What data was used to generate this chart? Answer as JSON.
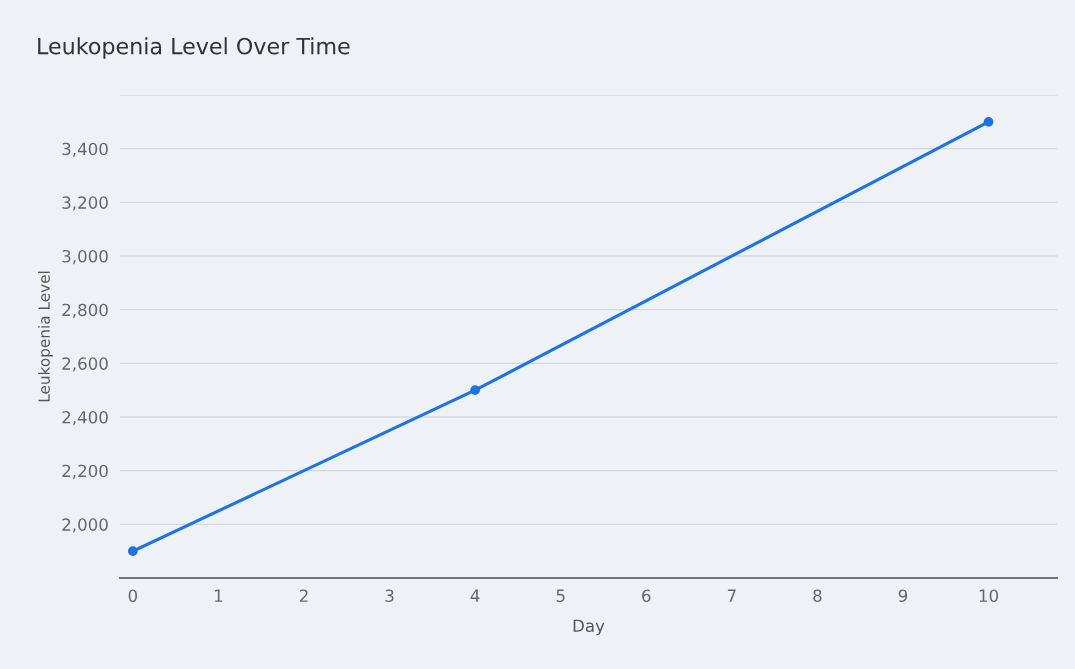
{
  "chart_data": {
    "type": "line",
    "title": "Leukopenia Level Over Time",
    "xlabel": "Day",
    "ylabel": "Leukopenia Level",
    "x": [
      0,
      4,
      10
    ],
    "series": [
      {
        "color": "#1a73e8",
        "values": [
          1900,
          2500,
          3500
        ]
      }
    ],
    "xlim": [
      -0.15,
      10.8
    ],
    "xticks": [
      0,
      1,
      2,
      3,
      4,
      5,
      6,
      7,
      8,
      9,
      10
    ],
    "ylim": [
      1800,
      3600
    ],
    "yticks": [
      {
        "value": 1800,
        "label": null
      },
      {
        "value": 2000,
        "label": "2,000"
      },
      {
        "value": 2200,
        "label": "2,200"
      },
      {
        "value": 2400,
        "label": "2,400"
      },
      {
        "value": 2600,
        "label": "2,600"
      },
      {
        "value": 2800,
        "label": "2,800"
      },
      {
        "value": 3000,
        "label": "3,000"
      },
      {
        "value": 3200,
        "label": "3,200"
      },
      {
        "value": 3400,
        "label": "3,400"
      },
      {
        "value": 3600,
        "label": null
      }
    ],
    "grid": "y",
    "marker": "circle",
    "line_style": "solid"
  }
}
